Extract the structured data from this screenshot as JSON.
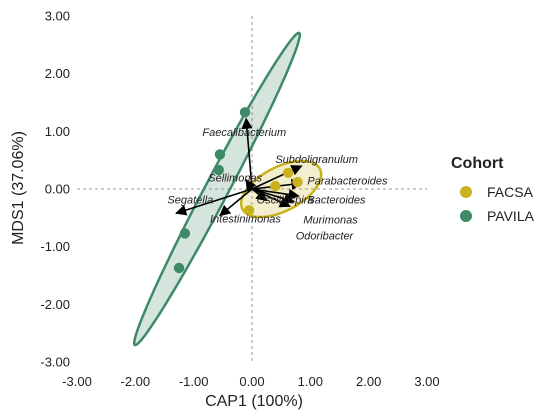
{
  "chart_data": {
    "type": "scatter",
    "xlabel": "CAP1 (100%)",
    "ylabel": "MDS1 (37.06%)",
    "xlim": [
      -3,
      3
    ],
    "ylim": [
      -3,
      3
    ],
    "x_ticks": [
      "-3.00",
      "-2.00",
      "-1.00",
      "0.00",
      "1.00",
      "2.00",
      "3.00"
    ],
    "y_ticks": [
      "-3.00",
      "-2.00",
      "-1.00",
      "0.00",
      "1.00",
      "2.00",
      "3.00"
    ],
    "zero_lines": true,
    "grid": false,
    "legend": {
      "title": "Cohort",
      "placement": "right",
      "entries": [
        {
          "name": "FACSA",
          "color": "#c9b21d"
        },
        {
          "name": "PAVILA",
          "color": "#3f8a66"
        }
      ]
    },
    "series": [
      {
        "name": "FACSA",
        "color": "#c9b21d",
        "points": [
          {
            "x": 0.62,
            "y": 0.28
          },
          {
            "x": 0.78,
            "y": 0.12
          },
          {
            "x": 0.4,
            "y": 0.05
          },
          {
            "x": -0.05,
            "y": -0.37
          }
        ],
        "ellipse": {
          "center": [
            0.5,
            0.0
          ],
          "semi_axes": [
            0.75,
            0.38
          ],
          "angle_deg": 28
        }
      },
      {
        "name": "PAVILA",
        "color": "#3f8a66",
        "points": [
          {
            "x": -0.12,
            "y": 1.33
          },
          {
            "x": -0.55,
            "y": 0.6
          },
          {
            "x": -0.57,
            "y": 0.33
          },
          {
            "x": -1.15,
            "y": -0.77
          },
          {
            "x": -1.25,
            "y": -1.37
          }
        ],
        "ellipse": {
          "center": [
            -0.6,
            0.0
          ],
          "semi_axes": [
            3.05,
            0.2
          ],
          "angle_deg": 62.5
        }
      }
    ],
    "vectors": [
      {
        "label": "Faecalibacterium",
        "x": -0.1,
        "y": 1.22,
        "label_x": -0.85,
        "label_y": 0.92
      },
      {
        "label": "Sellimonas",
        "x": -0.1,
        "y": 0.16,
        "label_x": -0.75,
        "label_y": 0.13
      },
      {
        "label": "Segatella",
        "x": -1.3,
        "y": -0.42,
        "label_x": -1.45,
        "label_y": -0.25
      },
      {
        "label": "Intestinimonas",
        "x": -0.55,
        "y": -0.46,
        "label_x": -0.72,
        "label_y": -0.58
      },
      {
        "label": "Oscillospira",
        "x": 0.25,
        "y": -0.2,
        "label_x": 0.08,
        "label_y": -0.25
      },
      {
        "label": "Subdoligranulum",
        "x": 0.85,
        "y": 0.4,
        "label_x": 0.4,
        "label_y": 0.45
      },
      {
        "label": "Parabacteroides",
        "x": 0.85,
        "y": 0.1,
        "label_x": 0.95,
        "label_y": 0.08
      },
      {
        "label": "Bacteroides",
        "x": 0.8,
        "y": -0.12,
        "label_x": 0.95,
        "label_y": -0.25
      },
      {
        "label": "Murimonas",
        "x": 0.72,
        "y": -0.22,
        "label_x": 0.88,
        "label_y": -0.6
      },
      {
        "label": "Odoribacter",
        "x": 0.65,
        "y": -0.3,
        "label_x": 0.75,
        "label_y": -0.88
      }
    ]
  }
}
